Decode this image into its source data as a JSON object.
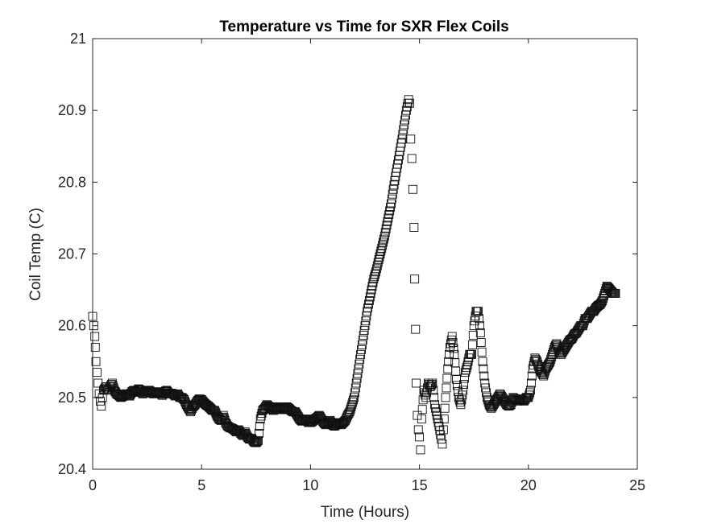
{
  "chart_data": {
    "type": "scatter",
    "title": "Temperature vs Time for SXR Flex Coils",
    "xlabel": "Time (Hours)",
    "ylabel": "Coil Temp (C)",
    "xlim": [
      0,
      25
    ],
    "ylim": [
      20.4,
      21
    ],
    "xticks": [
      "0",
      "5",
      "10",
      "15",
      "20",
      "25"
    ],
    "yticks": [
      "20.4",
      "20.5",
      "20.6",
      "20.7",
      "20.8",
      "20.9",
      "21"
    ],
    "xtick_values": [
      0,
      5,
      10,
      15,
      20,
      25
    ],
    "ytick_values": [
      20.4,
      20.5,
      20.6,
      20.7,
      20.8,
      20.9,
      21
    ],
    "marker": "open-square",
    "grid": false,
    "series": [
      {
        "marker_color": "#111111",
        "points": [
          [
            0.0,
            20.613
          ],
          [
            0.05,
            20.6
          ],
          [
            0.1,
            20.585
          ],
          [
            0.12,
            20.57
          ],
          [
            0.15,
            20.55
          ],
          [
            0.2,
            20.535
          ],
          [
            0.25,
            20.52
          ],
          [
            0.3,
            20.505
          ],
          [
            0.35,
            20.495
          ],
          [
            0.4,
            20.488
          ],
          [
            0.45,
            20.5
          ],
          [
            0.5,
            20.51
          ],
          [
            0.6,
            20.515
          ],
          [
            0.7,
            20.51
          ],
          [
            0.8,
            20.515
          ],
          [
            0.9,
            20.52
          ],
          [
            1.0,
            20.51
          ],
          [
            1.1,
            20.505
          ],
          [
            1.2,
            20.503
          ],
          [
            1.3,
            20.5
          ],
          [
            1.4,
            20.502
          ],
          [
            1.5,
            20.505
          ],
          [
            1.6,
            20.505
          ],
          [
            1.7,
            20.502
          ],
          [
            1.8,
            20.508
          ],
          [
            1.9,
            20.51
          ],
          [
            2.0,
            20.507
          ],
          [
            2.1,
            20.512
          ],
          [
            2.2,
            20.51
          ],
          [
            2.3,
            20.505
          ],
          [
            2.4,
            20.508
          ],
          [
            2.5,
            20.51
          ],
          [
            2.6,
            20.51
          ],
          [
            2.7,
            20.507
          ],
          [
            2.8,
            20.505
          ],
          [
            2.9,
            20.508
          ],
          [
            3.0,
            20.506
          ],
          [
            3.1,
            20.507
          ],
          [
            3.2,
            20.503
          ],
          [
            3.3,
            20.508
          ],
          [
            3.4,
            20.51
          ],
          [
            3.5,
            20.505
          ],
          [
            3.6,
            20.506
          ],
          [
            3.7,
            20.505
          ],
          [
            3.8,
            20.502
          ],
          [
            3.9,
            20.505
          ],
          [
            4.0,
            20.5
          ],
          [
            4.1,
            20.5
          ],
          [
            4.2,
            20.497
          ],
          [
            4.3,
            20.49
          ],
          [
            4.4,
            20.485
          ],
          [
            4.5,
            20.48
          ],
          [
            4.6,
            20.487
          ],
          [
            4.7,
            20.49
          ],
          [
            4.8,
            20.495
          ],
          [
            4.9,
            20.498
          ],
          [
            5.0,
            20.497
          ],
          [
            5.1,
            20.493
          ],
          [
            5.2,
            20.49
          ],
          [
            5.3,
            20.488
          ],
          [
            5.4,
            20.485
          ],
          [
            5.5,
            20.482
          ],
          [
            5.6,
            20.482
          ],
          [
            5.7,
            20.475
          ],
          [
            5.8,
            20.47
          ],
          [
            5.9,
            20.468
          ],
          [
            6.0,
            20.475
          ],
          [
            6.1,
            20.465
          ],
          [
            6.2,
            20.46
          ],
          [
            6.3,
            20.458
          ],
          [
            6.4,
            20.457
          ],
          [
            6.5,
            20.455
          ],
          [
            6.6,
            20.452
          ],
          [
            6.7,
            20.455
          ],
          [
            6.8,
            20.45
          ],
          [
            6.9,
            20.447
          ],
          [
            7.0,
            20.452
          ],
          [
            7.1,
            20.445
          ],
          [
            7.2,
            20.442
          ],
          [
            7.3,
            20.443
          ],
          [
            7.4,
            20.438
          ],
          [
            7.5,
            20.437
          ],
          [
            7.6,
            20.44
          ],
          [
            7.7,
            20.47
          ],
          [
            7.8,
            20.482
          ],
          [
            7.9,
            20.485
          ],
          [
            8.0,
            20.49
          ],
          [
            8.1,
            20.487
          ],
          [
            8.2,
            20.485
          ],
          [
            8.3,
            20.482
          ],
          [
            8.4,
            20.485
          ],
          [
            8.5,
            20.487
          ],
          [
            8.6,
            20.485
          ],
          [
            8.7,
            20.483
          ],
          [
            8.8,
            20.485
          ],
          [
            8.9,
            20.487
          ],
          [
            9.0,
            20.485
          ],
          [
            9.1,
            20.482
          ],
          [
            9.2,
            20.48
          ],
          [
            9.3,
            20.48
          ],
          [
            9.4,
            20.475
          ],
          [
            9.5,
            20.47
          ],
          [
            9.6,
            20.467
          ],
          [
            9.7,
            20.468
          ],
          [
            9.8,
            20.47
          ],
          [
            9.9,
            20.465
          ],
          [
            10.0,
            20.465
          ],
          [
            10.1,
            20.467
          ],
          [
            10.2,
            20.47
          ],
          [
            10.3,
            20.472
          ],
          [
            10.4,
            20.475
          ],
          [
            10.5,
            20.47
          ],
          [
            10.6,
            20.465
          ],
          [
            10.7,
            20.462
          ],
          [
            10.8,
            20.465
          ],
          [
            10.9,
            20.468
          ],
          [
            11.0,
            20.462
          ],
          [
            11.1,
            20.46
          ],
          [
            11.2,
            20.463
          ],
          [
            11.3,
            20.465
          ],
          [
            11.4,
            20.462
          ],
          [
            11.5,
            20.465
          ],
          [
            11.6,
            20.468
          ],
          [
            11.7,
            20.475
          ],
          [
            11.8,
            20.48
          ],
          [
            11.9,
            20.49
          ],
          [
            12.0,
            20.5
          ],
          [
            12.1,
            20.52
          ],
          [
            12.2,
            20.54
          ],
          [
            12.3,
            20.56
          ],
          [
            12.4,
            20.58
          ],
          [
            12.5,
            20.6
          ],
          [
            12.6,
            20.62
          ],
          [
            12.7,
            20.635
          ],
          [
            12.8,
            20.65
          ],
          [
            12.9,
            20.665
          ],
          [
            13.0,
            20.675
          ],
          [
            13.1,
            20.688
          ],
          [
            13.2,
            20.7
          ],
          [
            13.3,
            20.712
          ],
          [
            13.4,
            20.725
          ],
          [
            13.5,
            20.74
          ],
          [
            13.6,
            20.755
          ],
          [
            13.7,
            20.77
          ],
          [
            13.8,
            20.79
          ],
          [
            13.9,
            20.808
          ],
          [
            14.0,
            20.825
          ],
          [
            14.1,
            20.843
          ],
          [
            14.2,
            20.86
          ],
          [
            14.3,
            20.88
          ],
          [
            14.4,
            20.9
          ],
          [
            14.5,
            20.915
          ],
          [
            14.55,
            20.91
          ],
          [
            14.6,
            20.86
          ],
          [
            14.65,
            20.833
          ],
          [
            14.7,
            20.79
          ],
          [
            14.75,
            20.737
          ],
          [
            14.78,
            20.665
          ],
          [
            14.82,
            20.595
          ],
          [
            14.85,
            20.52
          ],
          [
            14.9,
            20.475
          ],
          [
            14.95,
            20.455
          ],
          [
            15.0,
            20.445
          ],
          [
            15.05,
            20.427
          ],
          [
            15.1,
            20.47
          ],
          [
            15.2,
            20.51
          ],
          [
            15.3,
            20.5
          ],
          [
            15.4,
            20.52
          ],
          [
            15.5,
            20.515
          ],
          [
            15.6,
            20.52
          ],
          [
            15.7,
            20.49
          ],
          [
            15.8,
            20.475
          ],
          [
            15.9,
            20.46
          ],
          [
            16.0,
            20.442
          ],
          [
            16.05,
            20.435
          ],
          [
            16.1,
            20.455
          ],
          [
            16.2,
            20.5
          ],
          [
            16.3,
            20.54
          ],
          [
            16.4,
            20.57
          ],
          [
            16.5,
            20.585
          ],
          [
            16.6,
            20.56
          ],
          [
            16.7,
            20.525
          ],
          [
            16.8,
            20.5
          ],
          [
            16.9,
            20.49
          ],
          [
            17.0,
            20.51
          ],
          [
            17.1,
            20.535
          ],
          [
            17.2,
            20.545
          ],
          [
            17.3,
            20.56
          ],
          [
            17.4,
            20.56
          ],
          [
            17.5,
            20.6
          ],
          [
            17.6,
            20.62
          ],
          [
            17.7,
            20.62
          ],
          [
            17.8,
            20.59
          ],
          [
            17.9,
            20.55
          ],
          [
            18.0,
            20.52
          ],
          [
            18.1,
            20.5
          ],
          [
            18.2,
            20.49
          ],
          [
            18.3,
            20.485
          ],
          [
            18.4,
            20.49
          ],
          [
            18.5,
            20.495
          ],
          [
            18.6,
            20.5
          ],
          [
            18.7,
            20.505
          ],
          [
            18.8,
            20.5
          ],
          [
            18.9,
            20.495
          ],
          [
            19.0,
            20.49
          ],
          [
            19.1,
            20.488
          ],
          [
            19.2,
            20.49
          ],
          [
            19.3,
            20.5
          ],
          [
            19.4,
            20.497
          ],
          [
            19.5,
            20.495
          ],
          [
            19.6,
            20.498
          ],
          [
            19.7,
            20.497
          ],
          [
            19.8,
            20.495
          ],
          [
            19.9,
            20.5
          ],
          [
            20.0,
            20.5
          ],
          [
            20.1,
            20.51
          ],
          [
            20.2,
            20.54
          ],
          [
            20.3,
            20.555
          ],
          [
            20.4,
            20.55
          ],
          [
            20.5,
            20.54
          ],
          [
            20.6,
            20.535
          ],
          [
            20.7,
            20.53
          ],
          [
            20.8,
            20.54
          ],
          [
            20.9,
            20.545
          ],
          [
            21.0,
            20.55
          ],
          [
            21.1,
            20.56
          ],
          [
            21.2,
            20.57
          ],
          [
            21.3,
            20.575
          ],
          [
            21.4,
            20.565
          ],
          [
            21.5,
            20.56
          ],
          [
            21.6,
            20.565
          ],
          [
            21.7,
            20.57
          ],
          [
            21.8,
            20.575
          ],
          [
            21.9,
            20.58
          ],
          [
            22.0,
            20.582
          ],
          [
            22.1,
            20.588
          ],
          [
            22.2,
            20.59
          ],
          [
            22.3,
            20.595
          ],
          [
            22.4,
            20.6
          ],
          [
            22.5,
            20.6
          ],
          [
            22.6,
            20.61
          ],
          [
            22.7,
            20.61
          ],
          [
            22.8,
            20.615
          ],
          [
            22.9,
            20.62
          ],
          [
            23.0,
            20.62
          ],
          [
            23.1,
            20.625
          ],
          [
            23.2,
            20.628
          ],
          [
            23.3,
            20.63
          ],
          [
            23.4,
            20.635
          ],
          [
            23.5,
            20.645
          ],
          [
            23.6,
            20.655
          ],
          [
            23.7,
            20.652
          ],
          [
            23.8,
            20.648
          ],
          [
            23.9,
            20.645
          ],
          [
            24.0,
            20.645
          ]
        ]
      }
    ]
  }
}
